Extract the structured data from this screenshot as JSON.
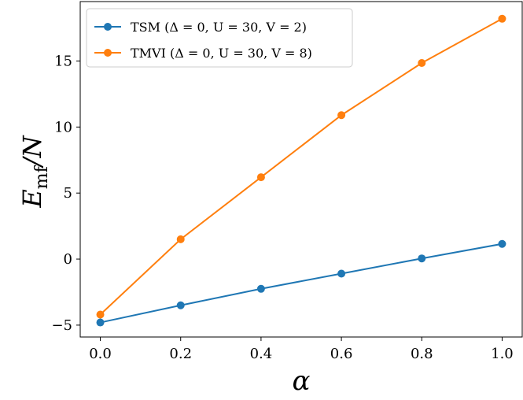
{
  "chart_data": {
    "type": "line",
    "title": "",
    "xlabel": "α",
    "ylabel": "E_mf/N",
    "ylabel_main": "E",
    "ylabel_sub": "mf",
    "ylabel_tail": "/N",
    "xlim": [
      -0.05,
      1.05
    ],
    "ylim": [
      -5.9,
      19.5
    ],
    "x": [
      0.0,
      0.2,
      0.4,
      0.6,
      0.8,
      1.0
    ],
    "x_ticks": [
      "0.0",
      "0.2",
      "0.4",
      "0.6",
      "0.8",
      "1.0"
    ],
    "y_ticks": [
      "−5",
      "0",
      "5",
      "10",
      "15"
    ],
    "y_tick_values": [
      -5,
      0,
      5,
      10,
      15
    ],
    "grid": false,
    "legend_placement": "top-left",
    "series": [
      {
        "name": "TSM  (Δ = 0, U = 30, V = 2)",
        "color": "#1f77b4",
        "values": [
          -4.8,
          -3.5,
          -2.25,
          -1.1,
          0.05,
          1.15
        ]
      },
      {
        "name": "TMVI (Δ = 0, U = 30, V = 8)",
        "color": "#ff7f0e",
        "values": [
          -4.2,
          1.5,
          6.2,
          10.9,
          14.85,
          18.2
        ]
      }
    ]
  }
}
